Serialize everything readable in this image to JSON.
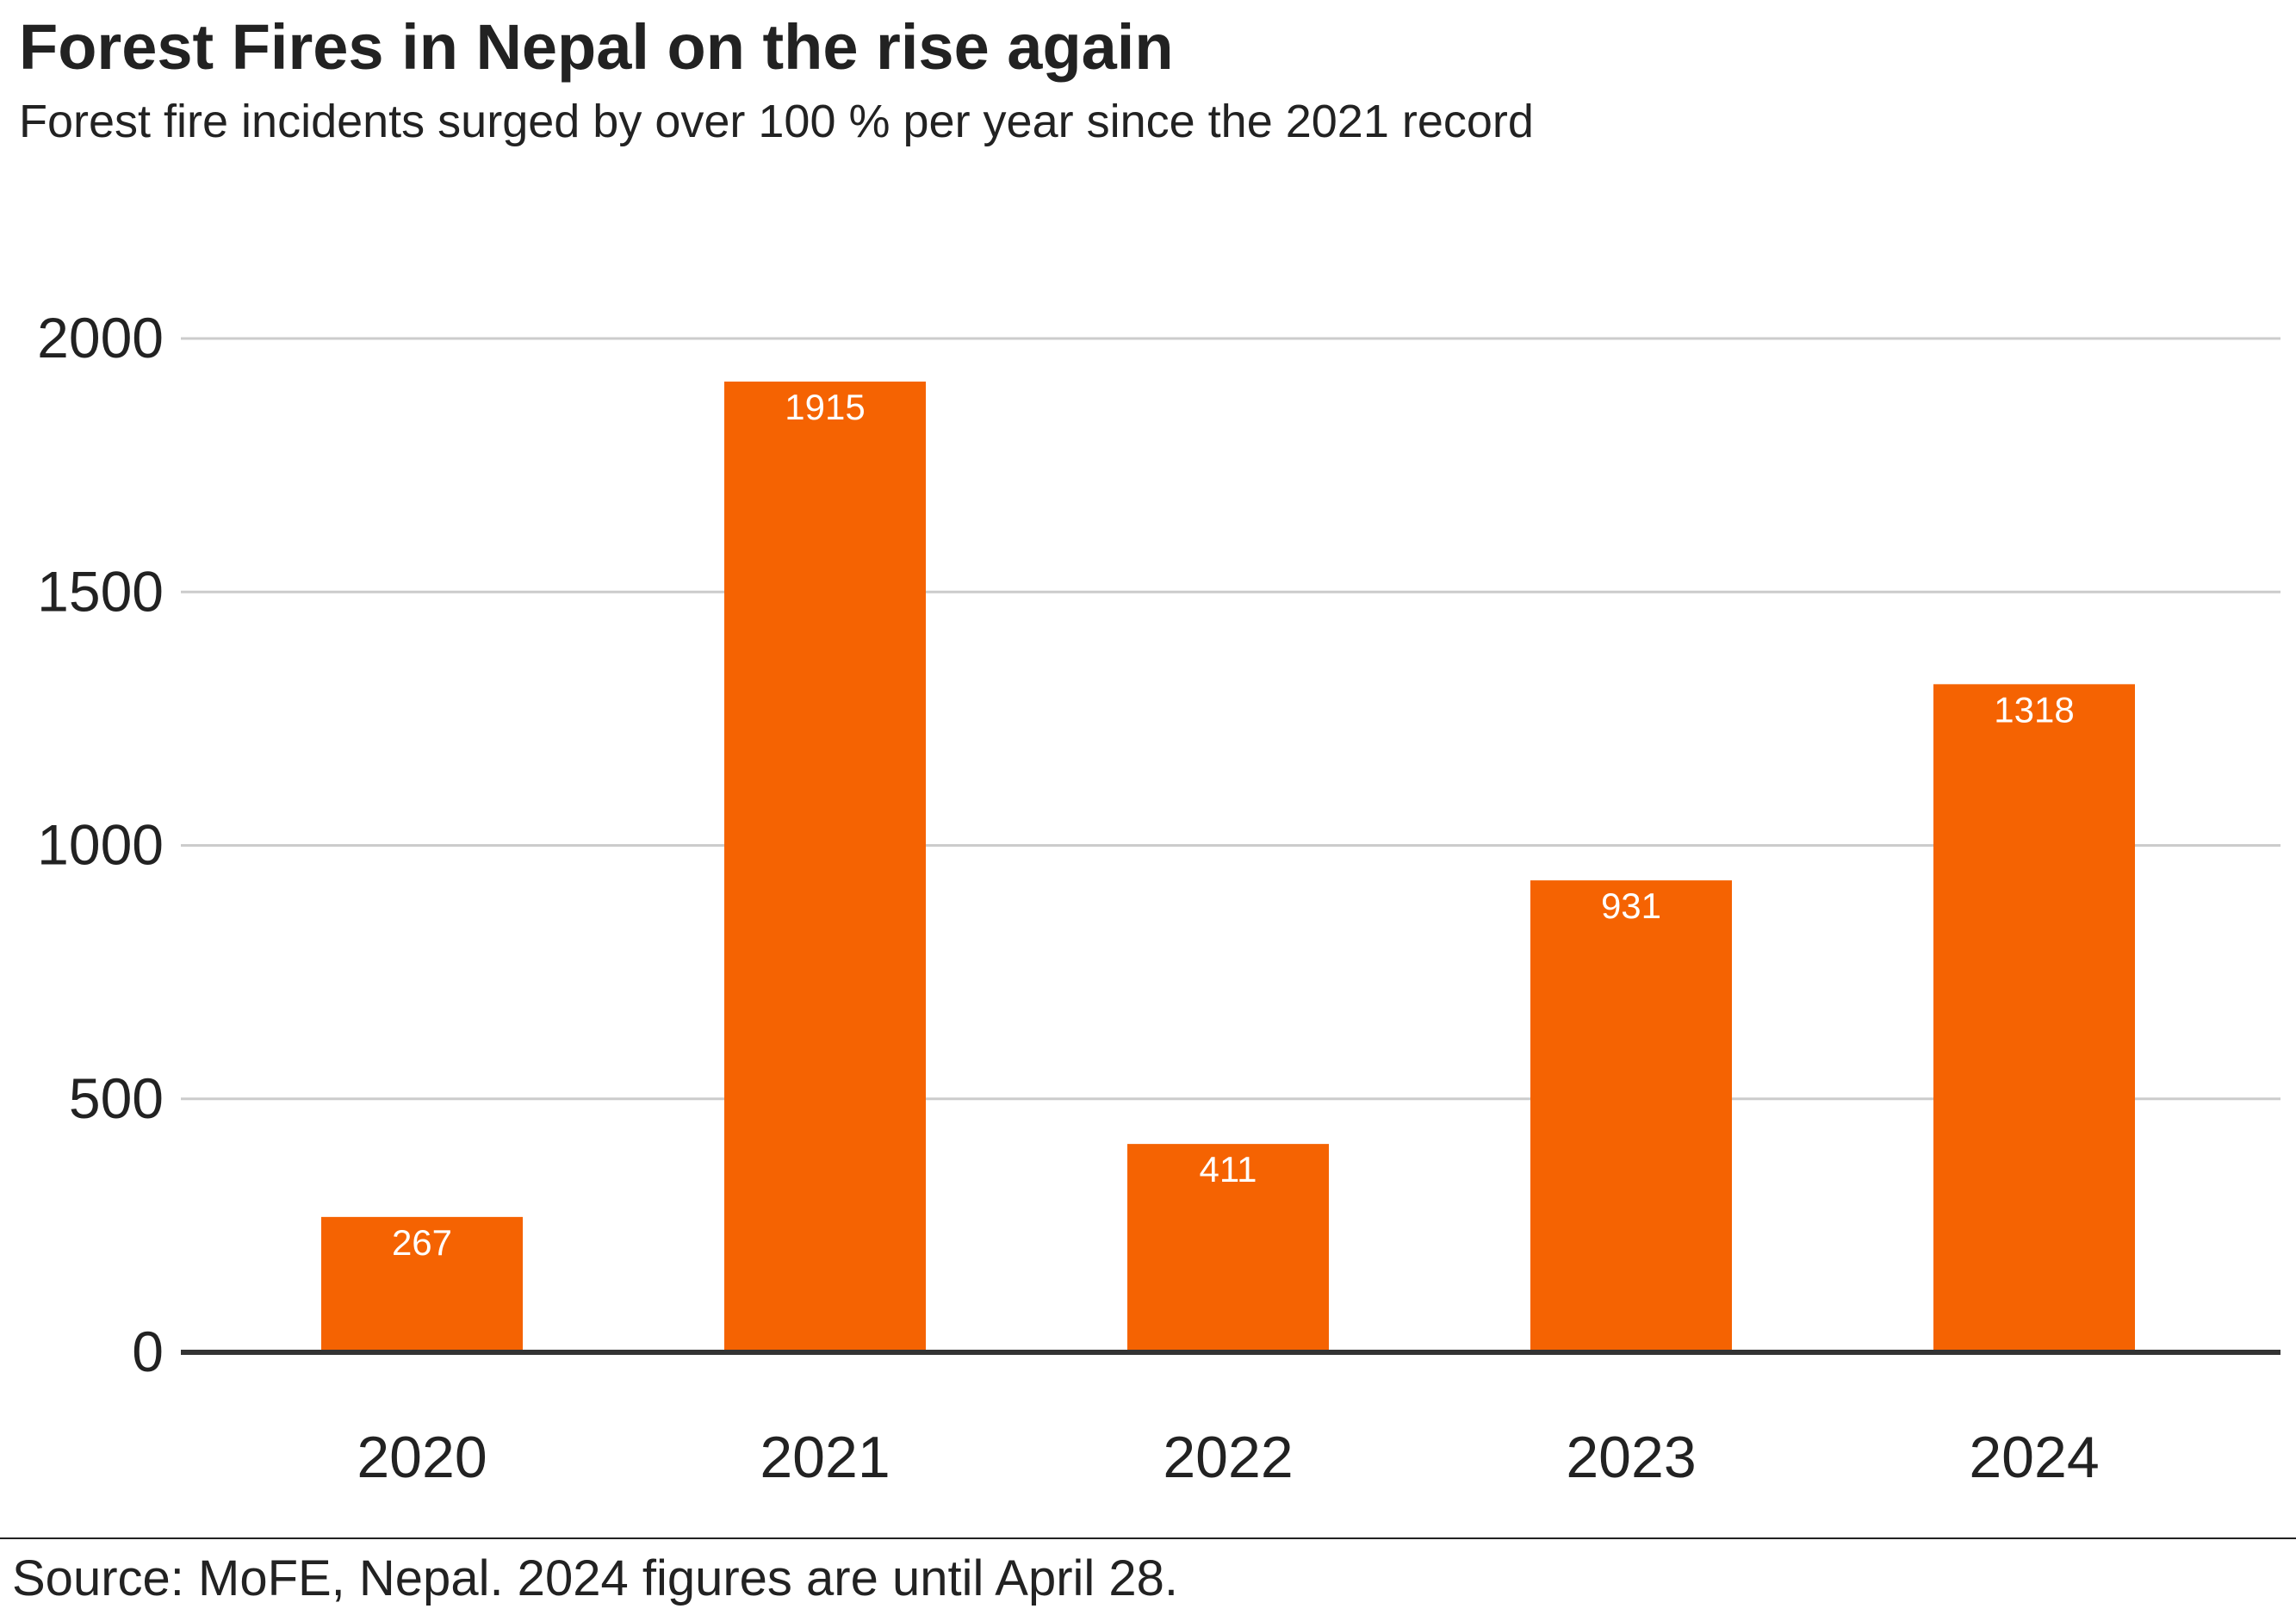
{
  "header": {
    "title": "Forest Fires in Nepal on the rise again",
    "subtitle": "Forest fire incidents surged by over 100 % per year since the 2021 record"
  },
  "footer": {
    "source": "Source: MoFE, Nepal. 2024 figures are until April 28."
  },
  "chart_data": {
    "type": "bar",
    "title": "Forest Fires in Nepal on the rise again",
    "subtitle": "Forest fire incidents surged by over 100 % per year since the 2021 record",
    "categories": [
      "2020",
      "2021",
      "2022",
      "2023",
      "2024"
    ],
    "values": [
      267,
      1915,
      411,
      931,
      1318
    ],
    "data_labels": [
      "267",
      "1915",
      "411",
      "931",
      "1318"
    ],
    "y_ticks": [
      0,
      500,
      1000,
      1500,
      2000
    ],
    "ylim": [
      0,
      2000
    ],
    "xlabel": "",
    "ylabel": "",
    "grid": true,
    "legend": false,
    "colors": {
      "bar": "#f56302",
      "gridline": "#cccccc",
      "baseline": "#333333",
      "label": "#ffffff",
      "text": "#222222"
    }
  }
}
